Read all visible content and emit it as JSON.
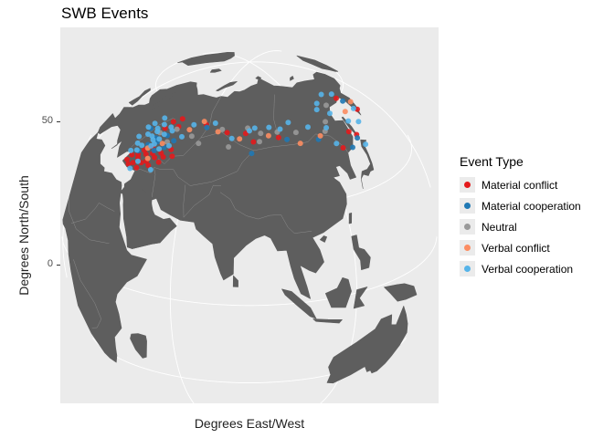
{
  "title": "SWB Events",
  "xlabel": "Degrees East/West",
  "ylabel": "Degrees North/South",
  "y_ticks": [
    {
      "label": "50",
      "value": 50
    },
    {
      "label": "0",
      "value": 0
    }
  ],
  "colors": {
    "panel_bg": "#ebebeb",
    "land": "#5e5e5e",
    "border": "#8c8c8c",
    "graticule": "#ffffff"
  },
  "legend": {
    "title": "Event Type",
    "items": [
      {
        "label": "Material conflict",
        "color": "#e41a1c"
      },
      {
        "label": "Material cooperation",
        "color": "#1f78b4"
      },
      {
        "label": "Neutral",
        "color": "#999999"
      },
      {
        "label": "Verbal conflict",
        "color": "#fc8d62"
      },
      {
        "label": "Verbal cooperation",
        "color": "#56b4e9"
      }
    ]
  },
  "chart_data": {
    "type": "scatter",
    "projection": "orthographic",
    "title": "SWB Events",
    "xlabel": "Degrees East/West",
    "ylabel": "Degrees North/South",
    "series": [
      {
        "name": "Material conflict",
        "color": "#e41a1c",
        "points": [
          [
            33,
            41
          ],
          [
            29,
            38
          ],
          [
            36,
            37
          ],
          [
            39,
            40
          ],
          [
            44,
            44
          ],
          [
            48,
            46
          ],
          [
            45,
            41
          ],
          [
            40,
            43
          ],
          [
            34,
            40
          ],
          [
            37,
            39
          ],
          [
            42,
            42
          ],
          [
            35,
            43
          ],
          [
            30,
            40
          ],
          [
            50,
            44
          ],
          [
            31,
            37
          ],
          [
            38,
            45
          ],
          [
            46,
            43
          ],
          [
            33,
            38
          ],
          [
            41,
            39
          ],
          [
            37,
            42
          ],
          [
            40,
            55
          ],
          [
            45,
            54
          ],
          [
            38,
            52
          ],
          [
            44,
            57
          ],
          [
            60,
            57
          ],
          [
            83,
            55
          ],
          [
            100,
            53
          ],
          [
            130,
            45
          ],
          [
            142,
            47
          ],
          [
            153,
            60
          ],
          [
            158,
            53
          ],
          [
            87,
            52
          ],
          [
            73,
            55
          ],
          [
            139,
            49
          ]
        ]
      },
      {
        "name": "Material cooperation",
        "color": "#1f78b4",
        "points": [
          [
            39,
            47
          ],
          [
            42,
            50
          ],
          [
            37,
            48
          ],
          [
            44,
            46
          ],
          [
            35,
            45
          ],
          [
            47,
            49
          ],
          [
            40,
            44
          ],
          [
            86,
            48
          ],
          [
            120,
            50
          ],
          [
            135,
            44
          ],
          [
            32,
            42
          ],
          [
            30,
            50
          ],
          [
            155,
            58
          ],
          [
            104,
            52
          ],
          [
            61,
            56
          ],
          [
            141,
            46
          ]
        ]
      },
      {
        "name": "Neutral",
        "color": "#999999",
        "points": [
          [
            45,
            53
          ],
          [
            70,
            56
          ],
          [
            84,
            57
          ],
          [
            55,
            52
          ],
          [
            91,
            55
          ],
          [
            110,
            54
          ],
          [
            126,
            52
          ],
          [
            140,
            60
          ],
          [
            37,
            50
          ],
          [
            44,
            48
          ],
          [
            75,
            50
          ],
          [
            100,
            55
          ],
          [
            60,
            50
          ],
          [
            130,
            55
          ],
          [
            90,
            52
          ]
        ]
      },
      {
        "name": "Verbal conflict",
        "color": "#fc8d62",
        "points": [
          [
            52,
            54
          ],
          [
            68,
            55
          ],
          [
            95,
            54
          ],
          [
            122,
            51
          ],
          [
            148,
            55
          ],
          [
            36,
            44
          ],
          [
            42,
            47
          ],
          [
            160,
            56
          ],
          [
            80,
            53
          ],
          [
            110,
            50
          ],
          [
            39,
            41
          ],
          [
            58,
            58
          ]
        ]
      },
      {
        "name": "Verbal cooperation",
        "color": "#56b4e9",
        "points": [
          [
            30,
            52
          ],
          [
            33,
            55
          ],
          [
            36,
            47
          ],
          [
            40,
            50
          ],
          [
            27,
            46
          ],
          [
            34,
            51
          ],
          [
            31,
            48
          ],
          [
            38,
            46
          ],
          [
            41,
            53
          ],
          [
            35,
            50
          ],
          [
            43,
            52
          ],
          [
            36,
            53
          ],
          [
            29,
            44
          ],
          [
            32,
            44
          ],
          [
            37,
            45
          ],
          [
            39,
            48
          ],
          [
            42,
            45
          ],
          [
            34,
            48
          ],
          [
            28,
            50
          ],
          [
            46,
            47
          ],
          [
            31,
            42
          ],
          [
            35,
            39
          ],
          [
            33,
            36
          ],
          [
            50,
            51
          ],
          [
            53,
            56
          ],
          [
            76,
            53
          ],
          [
            85,
            56
          ],
          [
            96,
            57
          ],
          [
            108,
            58
          ],
          [
            118,
            55
          ],
          [
            128,
            53
          ],
          [
            137,
            57
          ],
          [
            144,
            52
          ],
          [
            150,
            50
          ],
          [
            135,
            62
          ],
          [
            146,
            64
          ],
          [
            154,
            62
          ],
          [
            128,
            47
          ],
          [
            131,
            60
          ],
          [
            65,
            58
          ],
          [
            88,
            57
          ],
          [
            102,
            56
          ],
          [
            143,
            43
          ],
          [
            156,
            54
          ],
          [
            28,
            41
          ],
          [
            43,
            38
          ]
        ]
      }
    ]
  }
}
